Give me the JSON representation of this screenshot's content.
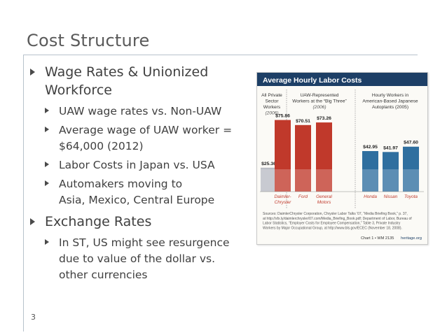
{
  "slide": {
    "title": "Cost Structure",
    "page_number": "3"
  },
  "bullets": [
    {
      "text": "Wage Rates & Unionized Workforce",
      "lines": [
        "Wage Rates & Unionized",
        "Workforce"
      ],
      "sub": [
        {
          "lines": [
            "UAW wage rates vs. Non-UAW"
          ]
        },
        {
          "lines": [
            "Average wage of UAW worker =",
            "$64,000 (2012)"
          ]
        },
        {
          "lines": [
            "Labor Costs in Japan vs. USA"
          ]
        },
        {
          "lines": [
            "Automakers moving to",
            "Asia, Mexico, Central Europe"
          ]
        }
      ]
    },
    {
      "text": "Exchange Rates",
      "lines": [
        "Exchange Rates"
      ],
      "sub": [
        {
          "lines": [
            "In ST, US might see resurgence",
            "due to value of the dollar vs.",
            "other currencies"
          ]
        }
      ]
    }
  ],
  "chart_data": {
    "type": "bar",
    "title": "Average Hourly Labor Costs",
    "groups": [
      {
        "header": [
          "All Private",
          "Sector",
          "Workers"
        ],
        "year": "(2006)"
      },
      {
        "header": [
          "UAW-Represented",
          "Workers at the “Big Three”"
        ],
        "year": "(2006)"
      },
      {
        "header": [
          "Hourly Workers in",
          "American-Based Japanese",
          "Autoplants (2005)"
        ],
        "year": ""
      }
    ],
    "categories": [
      "All Private Sector Workers",
      "Daimler-Chrysler",
      "Ford",
      "General Motors",
      "Honda",
      "Nissan",
      "Toyota"
    ],
    "category_labels": [
      [
        ""
      ],
      [
        "Daimler-",
        "Chrysler"
      ],
      [
        "Ford"
      ],
      [
        "General",
        "Motors"
      ],
      [
        "Honda"
      ],
      [
        "Nissan"
      ],
      [
        "Toyota"
      ]
    ],
    "values": [
      25.36,
      75.86,
      70.51,
      73.26,
      42.95,
      41.97,
      47.6
    ],
    "value_labels": [
      "$25.36",
      "$75.86",
      "$70.51",
      "$73.26",
      "$42.95",
      "$41.97",
      "$47.60"
    ],
    "bar_groups": [
      0,
      1,
      1,
      1,
      2,
      2,
      2
    ],
    "ylim": [
      0,
      100
    ],
    "colors": {
      "group0": "#b9bcc4",
      "group1": "#c0392b",
      "group2": "#2f6f9f",
      "title_bar": "#1d3f66",
      "label_text": "#c0392b"
    },
    "source": [
      "Sources: DaimlerChrysler Corporation, Chrysler Labor Talks '07, “Media Briefing Book,” p. 37,",
      "at http://sfx.ly/daimlerchrysler/07.com/Media_Briefing_Book.pdf; Department of Labor, Bureau of",
      "Labor Statistics, “Employer Costs for Employee Compensation,” Table 3, Private Industry",
      "Workers by Major Occupational Group, at http://www.bls.gov/ECEC (November 18, 2008)."
    ],
    "footer_left": "Chart 1 • WM 2135",
    "footer_right": "heritage.org"
  }
}
